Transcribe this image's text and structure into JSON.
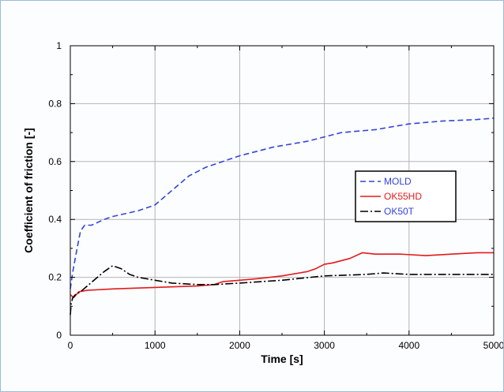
{
  "chart_data": {
    "type": "line",
    "title": "",
    "xlabel": "Time [s]",
    "ylabel": "Coefficient of friction [-]",
    "xlim": [
      0,
      5000
    ],
    "ylim": [
      0,
      1
    ],
    "xticks": [
      "0",
      "1000",
      "2000",
      "3000",
      "4000",
      "5000"
    ],
    "yticks": [
      "0",
      "0.2",
      "0.4",
      "0.6",
      "0.8",
      "1"
    ],
    "grid": true,
    "legend_position": "center-right",
    "series": [
      {
        "name": "MOLD",
        "color": "#3344dd",
        "dash": "dashed",
        "x": [
          0,
          30,
          80,
          120,
          170,
          250,
          400,
          500,
          650,
          800,
          1000,
          1200,
          1400,
          1600,
          1800,
          2000,
          2400,
          2800,
          3200,
          3600,
          4000,
          4400,
          4800,
          5000
        ],
        "y": [
          0.16,
          0.22,
          0.3,
          0.36,
          0.38,
          0.38,
          0.4,
          0.41,
          0.42,
          0.43,
          0.45,
          0.5,
          0.55,
          0.58,
          0.6,
          0.62,
          0.65,
          0.67,
          0.7,
          0.71,
          0.73,
          0.74,
          0.745,
          0.75
        ]
      },
      {
        "name": "OK55HD",
        "color": "#e31a1c",
        "dash": "solid",
        "x": [
          0,
          40,
          100,
          200,
          500,
          1000,
          1500,
          1700,
          1800,
          2000,
          2200,
          2500,
          2800,
          2900,
          3000,
          3100,
          3300,
          3450,
          3600,
          3900,
          4200,
          4500,
          4800,
          5000
        ],
        "y": [
          0.14,
          0.13,
          0.15,
          0.155,
          0.16,
          0.165,
          0.17,
          0.175,
          0.185,
          0.19,
          0.195,
          0.205,
          0.22,
          0.23,
          0.245,
          0.25,
          0.265,
          0.285,
          0.28,
          0.28,
          0.275,
          0.28,
          0.285,
          0.285
        ]
      },
      {
        "name": "OK50T",
        "color": "#000000",
        "dash": "dashdot",
        "x": [
          0,
          10,
          30,
          60,
          120,
          200,
          300,
          400,
          500,
          600,
          700,
          800,
          1000,
          1200,
          1500,
          1700,
          2000,
          2500,
          3000,
          3500,
          3700,
          4000,
          4500,
          5000
        ],
        "y": [
          0.07,
          0.11,
          0.13,
          0.14,
          0.15,
          0.17,
          0.195,
          0.22,
          0.24,
          0.23,
          0.21,
          0.2,
          0.19,
          0.18,
          0.175,
          0.175,
          0.18,
          0.19,
          0.205,
          0.21,
          0.215,
          0.21,
          0.21,
          0.21
        ]
      }
    ]
  }
}
